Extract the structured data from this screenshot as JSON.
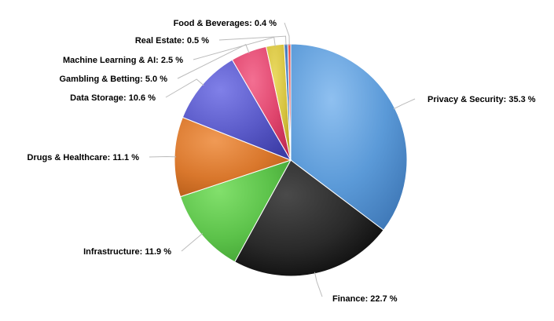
{
  "chart_data": {
    "type": "pie",
    "slices": [
      {
        "label": "Privacy & Security: 35.3 %",
        "value": 35.3,
        "color": "#5b9ad8",
        "color_hi": "#8fc0f0",
        "color_lo": "#3e77b6"
      },
      {
        "label": "Finance: 22.7 %",
        "value": 22.7,
        "color": "#2a2a2a",
        "color_hi": "#4a4a4a",
        "color_lo": "#050505"
      },
      {
        "label": "Infrastructure: 11.9 %",
        "value": 11.9,
        "color": "#5cc24a",
        "color_hi": "#82e06c",
        "color_lo": "#3e9d30"
      },
      {
        "label": "Drugs & Healthcare: 11.1 %",
        "value": 11.1,
        "color": "#d9772c",
        "color_hi": "#f09a55",
        "color_lo": "#b25916"
      },
      {
        "label": "Data Storage: 10.6 %",
        "value": 10.6,
        "color": "#5a5ac8",
        "color_hi": "#8080e8",
        "color_lo": "#3c3ca6"
      },
      {
        "label": "Gambling & Betting: 5.0 %",
        "value": 5.0,
        "color": "#e0466e",
        "color_hi": "#f36f92",
        "color_lo": "#c02a52"
      },
      {
        "label": "Machine Learning & AI: 2.5 %",
        "value": 2.5,
        "color": "#d6c340",
        "color_hi": "#ead962",
        "color_lo": "#b9a528"
      },
      {
        "label": "Real Estate: 0.5 %",
        "value": 0.5,
        "color": "#3c6fb0",
        "color_hi": "#5a8fd0",
        "color_lo": "#2a5590"
      },
      {
        "label": "Food & Beverages: 0.4 %",
        "value": 0.4,
        "color": "#e04a4a",
        "color_hi": "#f07070",
        "color_lo": "#b83030"
      }
    ],
    "start_angle_deg": 0,
    "direction": "clockwise",
    "legend": "none",
    "data_labels": "outside-with-connectors"
  }
}
